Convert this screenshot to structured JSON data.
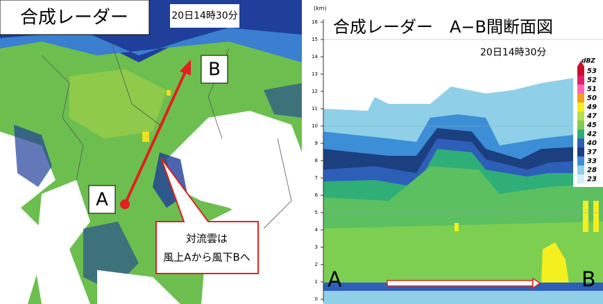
{
  "left_panel": {
    "title": "合成レーダー",
    "time": "20日14時30分",
    "point_a": "A",
    "point_b": "B",
    "callout": [
      "対流雲は",
      "風上Aから風下Bへ"
    ]
  },
  "right_panel": {
    "title": "合成レーダー　A−B間断面図",
    "time": "20日14時30分",
    "y_unit": "(km)",
    "yticks": [
      "0",
      "1",
      "2",
      "3",
      "4",
      "5",
      "6",
      "7",
      "8",
      "9",
      "10",
      "11",
      "12",
      "13",
      "14",
      "15",
      "16"
    ],
    "point_a": "A",
    "point_b": "B",
    "scale_unit": "dBZ",
    "scale_labels": [
      "53",
      "52",
      "51",
      "50",
      "49",
      "47",
      "45",
      "42",
      "40",
      "37",
      "33",
      "28",
      "23"
    ]
  }
}
